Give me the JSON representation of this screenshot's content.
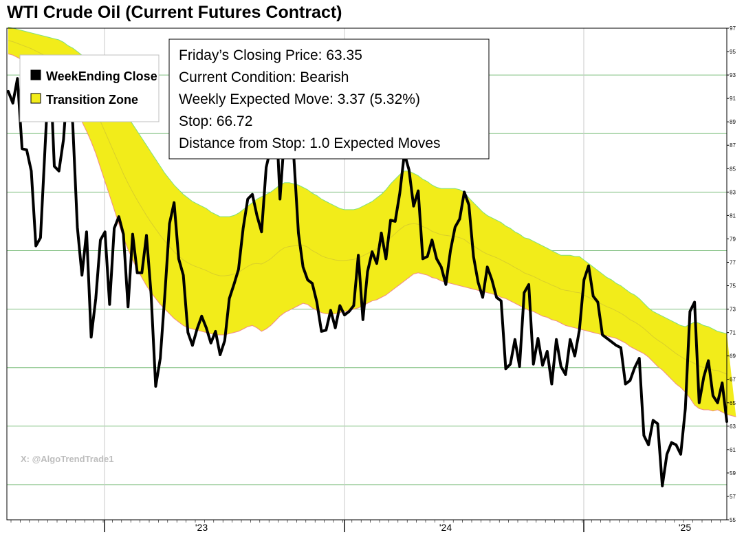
{
  "chart_data": {
    "type": "line",
    "title": "WTI Crude Oil (Current Futures Contract)",
    "ylim": [
      55,
      97
    ],
    "y_ticks": [
      "55",
      "57",
      "59",
      "61",
      "63",
      "65",
      "67",
      "69",
      "71",
      "73",
      "75",
      "77",
      "79",
      "81",
      "83",
      "85",
      "87",
      "89",
      "91",
      "93",
      "95",
      "97"
    ],
    "x_ticks": [
      "'23",
      "'24",
      "'25"
    ],
    "grid": "green horizontal lines every 5 (58, 63, 68 ... 93), gray vertical lines at year boundaries",
    "legend": {
      "placement": "top-left",
      "entries": [
        {
          "label": "WeekEnding Close",
          "color": "#000000"
        },
        {
          "label": "Transition Zone",
          "color": "#f2ec1a"
        }
      ]
    },
    "info_box": [
      "Friday’s Closing Price: 63.35",
      "Current Condition: Bearish",
      "Weekly Expected Move: 3.37 (5.32%)",
      "Stop: 66.72",
      "Distance from Stop: 1.0 Expected Moves"
    ],
    "watermark": "X: @AlgoTrendTrade1",
    "series": [
      {
        "name": "WeekEnding Close",
        "color": "#000000",
        "values": [
          91.6,
          90.6,
          92.7,
          86.7,
          86.6,
          84.8,
          78.4,
          79.1,
          86.9,
          94.5,
          85.2,
          84.8,
          87.5,
          93.0,
          88.8,
          80.0,
          75.9,
          79.6,
          70.6,
          73.9,
          78.9,
          79.6,
          73.4,
          79.9,
          80.9,
          79.4,
          73.2,
          79.4,
          76.1,
          76.1,
          79.3,
          74.3,
          66.4,
          68.8,
          74.3,
          80.3,
          82.1,
          77.3,
          75.9,
          71.0,
          69.9,
          71.3,
          72.4,
          71.4,
          70.1,
          71.1,
          69.1,
          70.3,
          73.9,
          75.1,
          76.4,
          79.9,
          82.4,
          82.8,
          81.0,
          79.6,
          85.1,
          86.8,
          91.0,
          82.4,
          88.0,
          90.5,
          86.0,
          79.5,
          76.6,
          75.5,
          75.2,
          73.6,
          71.1,
          71.2,
          72.9,
          71.4,
          73.3,
          72.5,
          72.8,
          73.3,
          77.6,
          72.1,
          76.2,
          77.9,
          76.9,
          79.5,
          77.3,
          80.6,
          80.5,
          82.9,
          86.3,
          84.9,
          81.8,
          83.1,
          77.3,
          77.5,
          78.9,
          77.3,
          76.6,
          75.1,
          78.0,
          80.0,
          80.7,
          83.0,
          81.9,
          77.5,
          75.3,
          74.0,
          76.6,
          75.5,
          74.0,
          73.7,
          67.9,
          68.3,
          70.4,
          68.1,
          74.4,
          75.1,
          68.3,
          70.5,
          68.2,
          69.4,
          66.6,
          70.4,
          68.1,
          67.4,
          70.4,
          69.0,
          71.2,
          75.5,
          76.7,
          74.1,
          73.6,
          70.8,
          70.5,
          70.2,
          69.9,
          69.7,
          66.6,
          66.9,
          68.0,
          68.8,
          62.2,
          61.4,
          63.5,
          63.2,
          57.9,
          60.6,
          61.6,
          61.4,
          60.6,
          64.5,
          72.8,
          73.6,
          65.0,
          67.2,
          68.6,
          65.6,
          65.0,
          66.7,
          63.4
        ]
      },
      {
        "name": "Transition Zone upper",
        "values": [
          97.1,
          97.0,
          96.9,
          96.8,
          96.7,
          96.6,
          96.5,
          96.4,
          96.3,
          96.2,
          96.1,
          96.0,
          95.8,
          95.5,
          95.3,
          95.0,
          94.7,
          94.3,
          94.0,
          93.6,
          93.0,
          92.4,
          91.8,
          91.2,
          90.6,
          90.0,
          89.4,
          88.8,
          88.2,
          87.6,
          87.0,
          86.4,
          85.8,
          85.2,
          84.6,
          84.1,
          83.6,
          83.2,
          82.8,
          82.5,
          82.2,
          82.0,
          81.8,
          81.6,
          81.3,
          81.1,
          80.9,
          80.9,
          80.9,
          81.0,
          81.2,
          81.5,
          81.8,
          82.1,
          82.4,
          82.6,
          82.8,
          83.0,
          83.3,
          83.6,
          83.8,
          83.8,
          83.7,
          83.6,
          83.4,
          83.2,
          82.9,
          82.7,
          82.4,
          82.2,
          82.0,
          81.8,
          81.6,
          81.5,
          81.5,
          81.5,
          81.6,
          81.8,
          82.0,
          82.2,
          82.5,
          82.8,
          83.2,
          83.7,
          84.1,
          84.5,
          84.8,
          84.8,
          84.6,
          84.4,
          84.1,
          83.9,
          83.6,
          83.4,
          83.3,
          83.3,
          83.3,
          83.3,
          83.2,
          83.0,
          82.5,
          82.1,
          81.7,
          81.3,
          81.0,
          80.8,
          80.6,
          80.4,
          80.1,
          79.9,
          79.6,
          79.4,
          79.1,
          79.0,
          78.8,
          78.6,
          78.4,
          78.2,
          78.0,
          77.8,
          77.6,
          77.6,
          77.6,
          77.5,
          77.5,
          77.2,
          76.9,
          76.6,
          76.3,
          76.0,
          75.7,
          75.5,
          75.2,
          75.0,
          74.7,
          74.4,
          74.2,
          73.9,
          73.5,
          73.1,
          72.8,
          72.6,
          72.4,
          72.2,
          72.0,
          71.8,
          71.6,
          71.5,
          71.7,
          71.9,
          71.8,
          71.6,
          71.5,
          71.3,
          71.1,
          71.0,
          70.9
        ]
      },
      {
        "name": "Transition Zone lower",
        "values": [
          94.8,
          94.7,
          94.5,
          94.3,
          94.1,
          93.9,
          93.6,
          93.3,
          93.0,
          92.6,
          92.2,
          91.8,
          91.3,
          90.8,
          90.3,
          89.7,
          89.0,
          88.2,
          87.3,
          86.3,
          85.1,
          83.9,
          82.7,
          81.5,
          80.3,
          79.1,
          78.1,
          77.2,
          76.4,
          75.7,
          75.0,
          74.4,
          73.9,
          73.4,
          73.0,
          72.6,
          72.2,
          71.9,
          71.6,
          71.4,
          71.3,
          71.2,
          71.1,
          71.0,
          70.9,
          70.8,
          70.8,
          70.8,
          70.9,
          71.0,
          71.1,
          71.3,
          71.5,
          71.6,
          71.4,
          71.1,
          71.3,
          71.6,
          72.0,
          72.4,
          72.7,
          72.9,
          73.1,
          73.3,
          73.5,
          73.4,
          73.1,
          72.9,
          72.7,
          72.6,
          72.6,
          72.6,
          72.7,
          72.8,
          72.9,
          73.0,
          73.1,
          73.3,
          73.5,
          73.7,
          73.8,
          74.0,
          74.2,
          74.5,
          74.8,
          75.1,
          75.4,
          75.7,
          76.0,
          76.1,
          76.0,
          75.9,
          75.7,
          75.6,
          75.4,
          75.3,
          75.2,
          75.1,
          75.0,
          74.9,
          74.8,
          74.7,
          74.6,
          74.5,
          74.4,
          74.3,
          74.2,
          74.0,
          73.9,
          73.7,
          73.5,
          73.3,
          73.1,
          72.9,
          72.8,
          72.6,
          72.4,
          72.3,
          72.1,
          72.0,
          71.8,
          71.6,
          71.5,
          71.4,
          71.3,
          71.2,
          71.1,
          71.0,
          70.9,
          70.8,
          70.7,
          70.6,
          70.5,
          70.3,
          70.1,
          69.8,
          69.6,
          69.4,
          69.2,
          68.9,
          68.5,
          68.1,
          67.8,
          67.4,
          67.0,
          66.6,
          66.3,
          65.9,
          65.4,
          64.8,
          64.5,
          64.4,
          64.4,
          64.3,
          64.4,
          64.2,
          64.0,
          63.9,
          63.8
        ]
      }
    ]
  }
}
